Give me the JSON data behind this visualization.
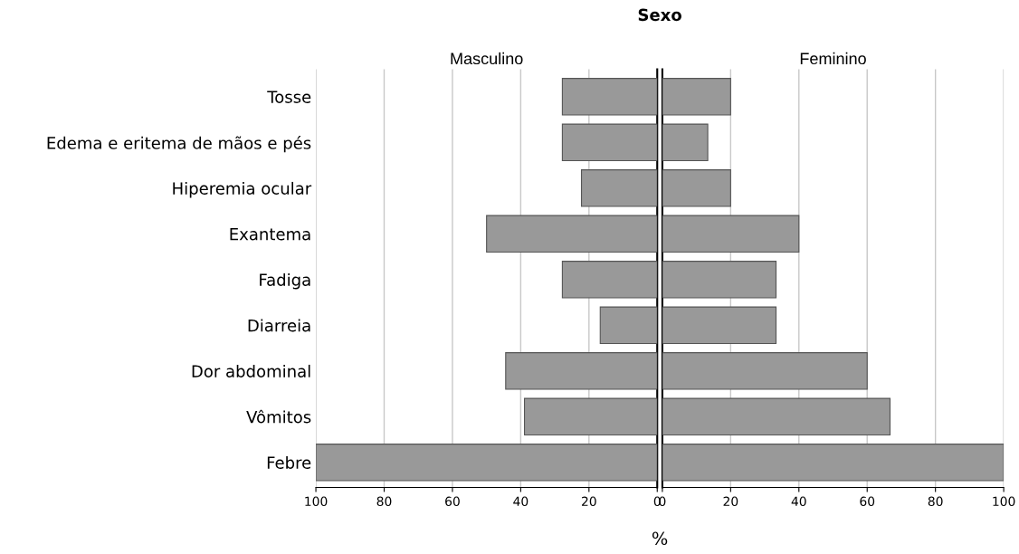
{
  "chart_data": [
    {
      "type": "bar",
      "orientation": "horizontal",
      "title": "Sexo",
      "subtitle": "Masculino",
      "xlabel": "%",
      "categories": [
        "Tosse",
        "Edema e eritema de mãos e pés",
        "Hiperemia ocular",
        "Exantema",
        "Fadiga",
        "Diarreia",
        "Dor abdominal",
        "Vômitos",
        "Febre"
      ],
      "values": [
        27.8,
        27.8,
        22.2,
        50,
        27.8,
        16.7,
        44.4,
        38.9,
        100
      ],
      "color": "#999999",
      "xlim": [
        100,
        0
      ],
      "xticks": [
        0,
        20,
        40,
        60,
        80,
        100
      ],
      "grid": "x"
    },
    {
      "type": "bar",
      "orientation": "horizontal",
      "subtitle": "Feminino",
      "categories": [
        null,
        null,
        null,
        null,
        null,
        null,
        null,
        null,
        null
      ],
      "values": [
        20,
        13.3,
        20,
        40,
        33.3,
        33.3,
        60,
        66.7,
        100
      ],
      "color": "#999999",
      "xlim": [
        0,
        100
      ],
      "xticks": [
        0,
        20,
        40,
        60,
        80,
        100
      ],
      "grid": "x",
      "tick_labels": "x"
    }
  ]
}
